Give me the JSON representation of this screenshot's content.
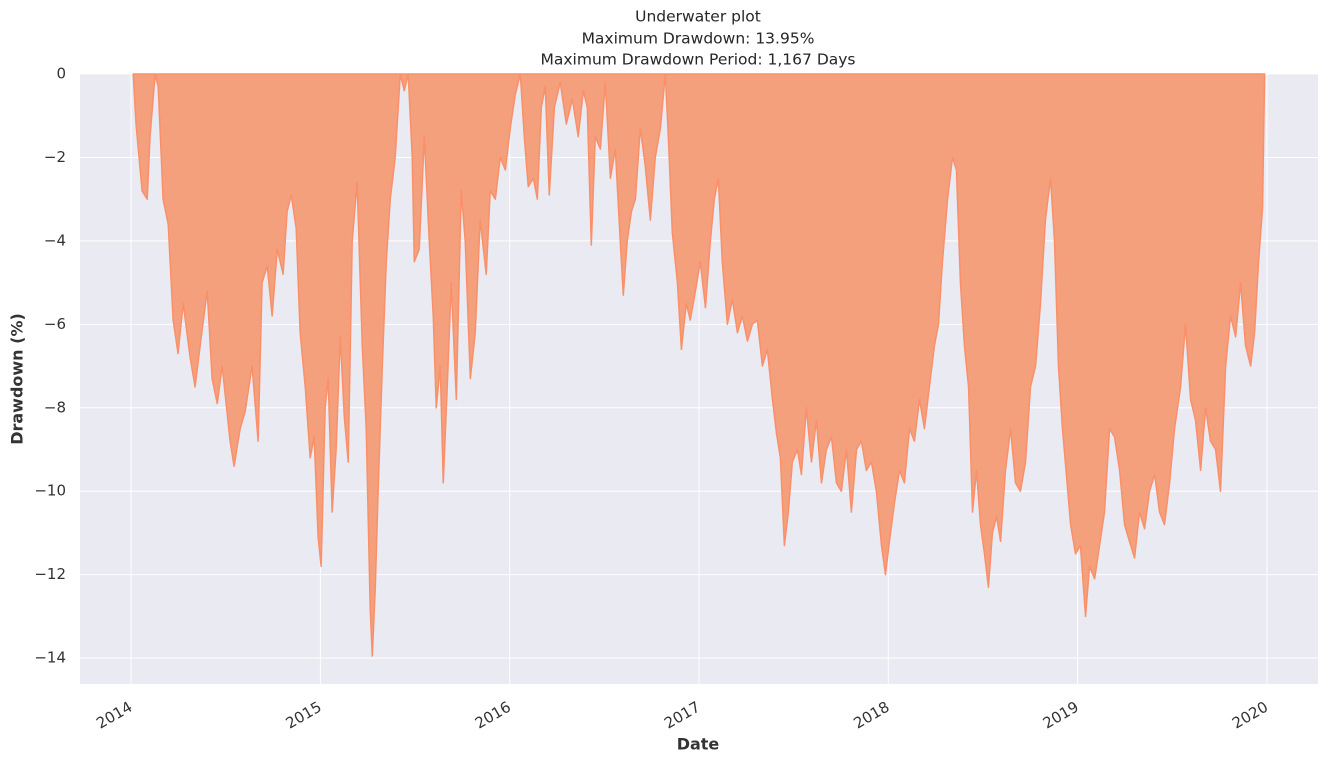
{
  "chart_data": {
    "type": "area",
    "title": "Underwater plot",
    "subtitles": [
      "Maximum Drawdown: 13.95%",
      "Maximum Drawdown Period: 1,167 Days"
    ],
    "xlabel": "Date",
    "ylabel": "Drawdown (%)",
    "color": "#f4a07c",
    "line_color": "#f9906a",
    "grid": true,
    "xlim": [
      2013.73,
      2020.27
    ],
    "xticks": [
      2014,
      2015,
      2016,
      2017,
      2018,
      2019,
      2020
    ],
    "ylim": [
      -14.62,
      0
    ],
    "yticks": [
      0,
      {
        "value": -2,
        "label": "−2"
      },
      {
        "value": -4,
        "label": "−4"
      },
      {
        "value": -6,
        "label": "−6"
      },
      {
        "value": -8,
        "label": "−8"
      },
      {
        "value": -10,
        "label": "−10"
      },
      {
        "value": -12,
        "label": "−12"
      },
      {
        "value": -14,
        "label": "−14"
      }
    ],
    "x": [
      2014.011,
      2014.026,
      2014.058,
      2014.085,
      2014.1,
      2014.127,
      2014.143,
      2014.169,
      2014.196,
      2014.222,
      2014.248,
      2014.275,
      2014.312,
      2014.338,
      2014.365,
      2014.402,
      2014.428,
      2014.455,
      2014.481,
      2014.523,
      2014.544,
      2014.576,
      2014.602,
      2014.639,
      2014.671,
      2014.692,
      2014.719,
      2014.745,
      2014.772,
      2014.803,
      2014.824,
      2014.846,
      2014.872,
      2014.893,
      2014.92,
      2014.946,
      2014.967,
      2014.988,
      2015.004,
      2015.025,
      2015.041,
      2015.062,
      2015.083,
      2015.105,
      2015.126,
      2015.147,
      2015.168,
      2015.194,
      2015.221,
      2015.242,
      2015.263,
      2015.274,
      2015.29,
      2015.305,
      2015.327,
      2015.348,
      2015.369,
      2015.395,
      2015.422,
      2015.443,
      2015.464,
      2015.485,
      2015.496,
      2015.522,
      2015.549,
      2015.575,
      2015.596,
      2015.612,
      2015.633,
      2015.649,
      2015.67,
      2015.691,
      2015.718,
      2015.744,
      2015.765,
      2015.792,
      2015.818,
      2015.844,
      2015.876,
      2015.897,
      2015.924,
      2015.95,
      2015.977,
      2016.003,
      2016.029,
      2016.056,
      2016.077,
      2016.098,
      2016.125,
      2016.146,
      2016.167,
      2016.188,
      2016.209,
      2016.236,
      2016.267,
      2016.299,
      2016.331,
      2016.362,
      2016.389,
      2016.41,
      2016.431,
      2016.452,
      2016.479,
      2016.505,
      2016.532,
      2016.558,
      2016.584,
      2016.6,
      2016.621,
      2016.643,
      2016.664,
      2016.69,
      2016.716,
      2016.743,
      2016.769,
      2016.796,
      2016.822,
      2016.838,
      2016.859,
      2016.886,
      2016.907,
      2016.933,
      2016.954,
      2016.981,
      2017.007,
      2017.034,
      2017.06,
      2017.081,
      2017.102,
      2017.123,
      2017.15,
      2017.176,
      2017.203,
      2017.229,
      2017.256,
      2017.282,
      2017.308,
      2017.335,
      2017.361,
      2017.388,
      2017.409,
      2017.43,
      2017.451,
      2017.472,
      2017.493,
      2017.52,
      2017.541,
      2017.567,
      2017.594,
      2017.62,
      2017.647,
      2017.673,
      2017.7,
      2017.726,
      2017.752,
      2017.779,
      2017.805,
      2017.832,
      2017.858,
      2017.884,
      2017.911,
      2017.937,
      2017.964,
      2017.985,
      2018.006,
      2018.032,
      2018.059,
      2018.085,
      2018.112,
      2018.138,
      2018.165,
      2018.191,
      2018.217,
      2018.244,
      2018.265,
      2018.286,
      2018.313,
      2018.339,
      2018.36,
      2018.381,
      2018.402,
      2018.424,
      2018.445,
      2018.466,
      2018.487,
      2018.508,
      2018.529,
      2018.55,
      2018.572,
      2018.593,
      2018.619,
      2018.646,
      2018.672,
      2018.698,
      2018.725,
      2018.751,
      2018.778,
      2018.804,
      2018.83,
      2018.857,
      2018.878,
      2018.899,
      2018.92,
      2018.941,
      2018.963,
      2018.989,
      2019.015,
      2019.042,
      2019.063,
      2019.09,
      2019.116,
      2019.142,
      2019.169,
      2019.195,
      2019.222,
      2019.248,
      2019.274,
      2019.301,
      2019.327,
      2019.354,
      2019.38,
      2019.407,
      2019.433,
      2019.459,
      2019.486,
      2019.512,
      2019.544,
      2019.57,
      2019.597,
      2019.623,
      2019.65,
      2019.676,
      2019.702,
      2019.729,
      2019.755,
      2019.782,
      2019.808,
      2019.835,
      2019.861,
      2019.887,
      2019.914,
      2019.935,
      2019.956,
      2019.977,
      2019.988
    ],
    "values": [
      0,
      -1.2,
      -2.8,
      -3.0,
      -1.5,
      0,
      -0.3,
      -3.0,
      -3.6,
      -5.9,
      -6.7,
      -5.5,
      -6.8,
      -7.5,
      -6.5,
      -5.2,
      -7.3,
      -7.9,
      -7.0,
      -8.8,
      -9.4,
      -8.5,
      -8.1,
      -7.0,
      -8.8,
      -5.0,
      -4.6,
      -5.8,
      -4.2,
      -4.8,
      -3.3,
      -2.9,
      -3.7,
      -6.2,
      -7.5,
      -9.2,
      -8.7,
      -11.1,
      -11.8,
      -8.0,
      -7.3,
      -10.5,
      -9.0,
      -6.3,
      -8.2,
      -9.3,
      -4.0,
      -2.6,
      -6.5,
      -8.5,
      -12.8,
      -13.95,
      -12.3,
      -10.0,
      -7.0,
      -4.5,
      -3.0,
      -2.0,
      0,
      -0.4,
      0,
      -2.0,
      -4.5,
      -4.2,
      -1.5,
      -4.0,
      -5.8,
      -8.0,
      -7.0,
      -9.8,
      -7.5,
      -5.0,
      -7.8,
      -2.8,
      -4.0,
      -7.3,
      -6.2,
      -3.5,
      -4.8,
      -2.8,
      -3.0,
      -2.0,
      -2.3,
      -1.3,
      -0.5,
      0,
      -1.5,
      -2.7,
      -2.5,
      -3.0,
      -0.8,
      -0.3,
      -2.9,
      -0.8,
      -0.2,
      -1.2,
      -0.6,
      -1.5,
      -0.4,
      -0.8,
      -4.1,
      -1.5,
      -1.8,
      -0.2,
      -2.5,
      -1.8,
      -4.0,
      -5.3,
      -4.0,
      -3.3,
      -3.0,
      -1.3,
      -2.2,
      -3.5,
      -2.0,
      -1.3,
      0,
      -1.5,
      -3.8,
      -5.0,
      -6.6,
      -5.5,
      -5.9,
      -5.2,
      -4.5,
      -5.6,
      -4.0,
      -3.0,
      -2.5,
      -4.5,
      -6.0,
      -5.4,
      -6.2,
      -5.8,
      -6.4,
      -6.0,
      -5.9,
      -7.0,
      -6.6,
      -7.8,
      -8.6,
      -9.2,
      -11.3,
      -10.5,
      -9.3,
      -9.0,
      -9.6,
      -8.0,
      -9.3,
      -8.3,
      -9.8,
      -9.0,
      -8.7,
      -9.8,
      -10.0,
      -9.0,
      -10.5,
      -9.0,
      -8.8,
      -9.5,
      -9.3,
      -10.0,
      -11.3,
      -12.0,
      -11.2,
      -10.3,
      -9.5,
      -9.8,
      -8.5,
      -8.8,
      -7.8,
      -8.5,
      -7.5,
      -6.5,
      -6.0,
      -4.5,
      -3.0,
      -2.0,
      -2.3,
      -5.0,
      -6.5,
      -7.5,
      -10.5,
      -9.5,
      -10.8,
      -11.5,
      -12.3,
      -11.0,
      -10.6,
      -11.2,
      -9.5,
      -8.5,
      -9.8,
      -10.0,
      -9.3,
      -7.5,
      -7.0,
      -5.5,
      -3.5,
      -2.5,
      -4.0,
      -7.0,
      -8.5,
      -9.6,
      -10.8,
      -11.5,
      -11.3,
      -13.0,
      -11.8,
      -12.1,
      -11.3,
      -10.5,
      -8.5,
      -8.7,
      -9.5,
      -10.8,
      -11.2,
      -11.6,
      -10.5,
      -10.9,
      -10.0,
      -9.6,
      -10.5,
      -10.8,
      -9.8,
      -8.5,
      -7.5,
      -6.0,
      -7.8,
      -8.3,
      -9.5,
      -8.0,
      -8.8,
      -9.0,
      -10.0,
      -7.0,
      -5.8,
      -6.3,
      -5.0,
      -6.5,
      -7.0,
      -6.2,
      -4.5,
      -3.2,
      0
    ]
  }
}
